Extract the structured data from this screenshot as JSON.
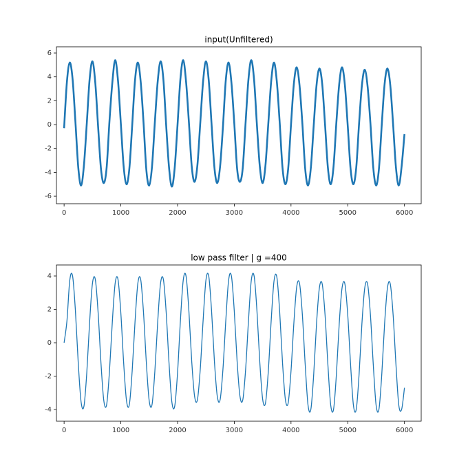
{
  "chart_data": [
    {
      "type": "line",
      "title": "input(Unfiltered)",
      "color": "#1f77b4",
      "x": [
        0,
        50,
        100,
        150,
        200,
        250,
        300,
        350,
        400,
        450,
        500,
        550,
        600,
        650,
        700,
        750,
        800,
        850,
        900,
        950,
        1000,
        1050,
        1100,
        1150,
        1200,
        1250,
        1300,
        1350,
        1400,
        1450,
        1500,
        1550,
        1600,
        1650,
        1700,
        1750,
        1800,
        1850,
        1900,
        1950,
        2000,
        2050,
        2100,
        2150,
        2200,
        2250,
        2300,
        2350,
        2400,
        2450,
        2500,
        2550,
        2600,
        2650,
        2700,
        2750,
        2800,
        2850,
        2900,
        2950,
        3000,
        3050,
        3100,
        3150,
        3200,
        3250,
        3300,
        3350,
        3400,
        3450,
        3500,
        3550,
        3600,
        3650,
        3700,
        3750,
        3800,
        3850,
        3900,
        3950,
        4000,
        4050,
        4100,
        4150,
        4200,
        4250,
        4300,
        4350,
        4400,
        4450,
        4500,
        4550,
        4600,
        4650,
        4700,
        4750,
        4800,
        4850,
        4900,
        4950,
        5000,
        5050,
        5100,
        5150,
        5200,
        5250,
        5300,
        5350,
        5400,
        5450,
        5500,
        5550,
        5600,
        5650,
        5700,
        5750,
        5800,
        5850,
        5900,
        5950,
        6000
      ],
      "values": [
        -0.3,
        3.6,
        5.2,
        3.8,
        0.2,
        -3.6,
        -5.1,
        -3.4,
        0.1,
        3.8,
        5.3,
        3.5,
        -0.2,
        -3.7,
        -4.9,
        -3.6,
        0.3,
        3.5,
        5.4,
        3.7,
        0.1,
        -3.5,
        -5.0,
        -3.7,
        -0.1,
        3.7,
        5.2,
        3.6,
        0.2,
        -3.8,
        -5.1,
        -3.5,
        0.2,
        3.6,
        5.3,
        3.8,
        -0.1,
        -3.6,
        -5.2,
        -3.6,
        0.0,
        3.8,
        5.4,
        3.6,
        0.2,
        -3.5,
        -4.8,
        -3.4,
        0.1,
        3.6,
        5.3,
        3.7,
        0.0,
        -3.6,
        -4.9,
        -3.5,
        -0.2,
        3.7,
        5.2,
        3.5,
        0.1,
        -3.7,
        -4.8,
        -3.6,
        0.2,
        3.8,
        5.4,
        3.7,
        -0.1,
        -3.5,
        -4.9,
        -3.4,
        0.1,
        3.6,
        5.2,
        3.6,
        0.2,
        -3.6,
        -5.0,
        -3.7,
        0.0,
        3.4,
        4.8,
        3.3,
        0.1,
        -3.7,
        -5.1,
        -3.6,
        -0.1,
        3.3,
        4.7,
        3.4,
        0.0,
        -3.6,
        -5.0,
        -3.5,
        0.2,
        3.4,
        4.8,
        3.3,
        -0.1,
        -3.7,
        -5.0,
        -3.6,
        0.1,
        3.3,
        4.6,
        3.2,
        0.1,
        -3.6,
        -5.1,
        -3.7,
        0.0,
        3.4,
        4.7,
        3.3,
        0.0,
        -3.6,
        -5.1,
        -3.5,
        -0.8
      ],
      "xlim": [
        -135,
        6295
      ],
      "xticks": [
        0,
        1000,
        2000,
        3000,
        4000,
        5000,
        6000
      ],
      "ylim": [
        -6.63,
        6.52
      ],
      "yticks": [
        -6,
        -4,
        -2,
        0,
        2,
        4,
        6
      ]
    },
    {
      "type": "line",
      "title": "low pass filter | g =400",
      "color": "#1f77b4",
      "x": [
        0,
        50,
        100,
        150,
        200,
        250,
        300,
        350,
        400,
        450,
        500,
        550,
        600,
        650,
        700,
        750,
        800,
        850,
        900,
        950,
        1000,
        1050,
        1100,
        1150,
        1200,
        1250,
        1300,
        1350,
        1400,
        1450,
        1500,
        1550,
        1600,
        1650,
        1700,
        1750,
        1800,
        1850,
        1900,
        1950,
        2000,
        2050,
        2100,
        2150,
        2200,
        2250,
        2300,
        2350,
        2400,
        2450,
        2500,
        2550,
        2600,
        2650,
        2700,
        2750,
        2800,
        2850,
        2900,
        2950,
        3000,
        3050,
        3100,
        3150,
        3200,
        3250,
        3300,
        3350,
        3400,
        3450,
        3500,
        3550,
        3600,
        3650,
        3700,
        3750,
        3800,
        3850,
        3900,
        3950,
        4000,
        4050,
        4100,
        4150,
        4200,
        4250,
        4300,
        4350,
        4400,
        4450,
        4500,
        4550,
        4600,
        4650,
        4700,
        4750,
        4800,
        4850,
        4900,
        4950,
        5000,
        5050,
        5100,
        5150,
        5200,
        5250,
        5300,
        5350,
        5400,
        5450,
        5500,
        5550,
        5600,
        5650,
        5700,
        5750,
        5800,
        5850,
        5900,
        5950,
        6000
      ],
      "values": [
        0,
        1.3,
        3.74,
        3.99,
        1.89,
        -1.24,
        -3.56,
        -3.8,
        -1.8,
        1.24,
        3.56,
        3.8,
        1.8,
        -1.21,
        -3.47,
        -3.71,
        -1.7,
        1.24,
        3.56,
        3.8,
        1.8,
        -1.21,
        -3.47,
        -3.71,
        -1.7,
        1.24,
        3.56,
        3.8,
        1.8,
        -1.21,
        -3.47,
        -3.71,
        -1.7,
        1.24,
        3.56,
        3.8,
        1.8,
        -1.24,
        -3.56,
        -3.8,
        -1.8,
        1.3,
        3.74,
        3.99,
        1.89,
        -1.12,
        -3.2,
        -3.42,
        -1.6,
        1.3,
        3.74,
        3.99,
        1.89,
        -1.12,
        -3.2,
        -3.42,
        -1.6,
        1.3,
        3.74,
        3.99,
        1.89,
        -1.12,
        -3.2,
        -3.42,
        -1.6,
        1.3,
        3.74,
        3.99,
        1.89,
        -1.18,
        -3.38,
        -3.61,
        -1.7,
        1.29,
        3.69,
        3.94,
        1.87,
        -1.18,
        -3.38,
        -3.61,
        -1.7,
        1.16,
        3.34,
        3.56,
        1.69,
        -1.3,
        -3.74,
        -3.99,
        -1.9,
        1.15,
        3.29,
        3.52,
        1.67,
        -1.3,
        -3.74,
        -3.99,
        -1.9,
        1.15,
        3.29,
        3.52,
        1.67,
        -1.3,
        -3.74,
        -3.99,
        -1.9,
        1.15,
        3.29,
        3.52,
        1.67,
        -1.3,
        -3.74,
        -3.99,
        -1.9,
        1.15,
        3.29,
        3.52,
        1.67,
        -1.3,
        -3.74,
        -3.99,
        -2.7
      ],
      "xlim": [
        -135,
        6295
      ],
      "xticks": [
        0,
        1000,
        2000,
        3000,
        4000,
        5000,
        6000
      ],
      "ylim": [
        -4.7,
        4.66
      ],
      "yticks": [
        -4,
        -2,
        0,
        2,
        4
      ]
    }
  ]
}
